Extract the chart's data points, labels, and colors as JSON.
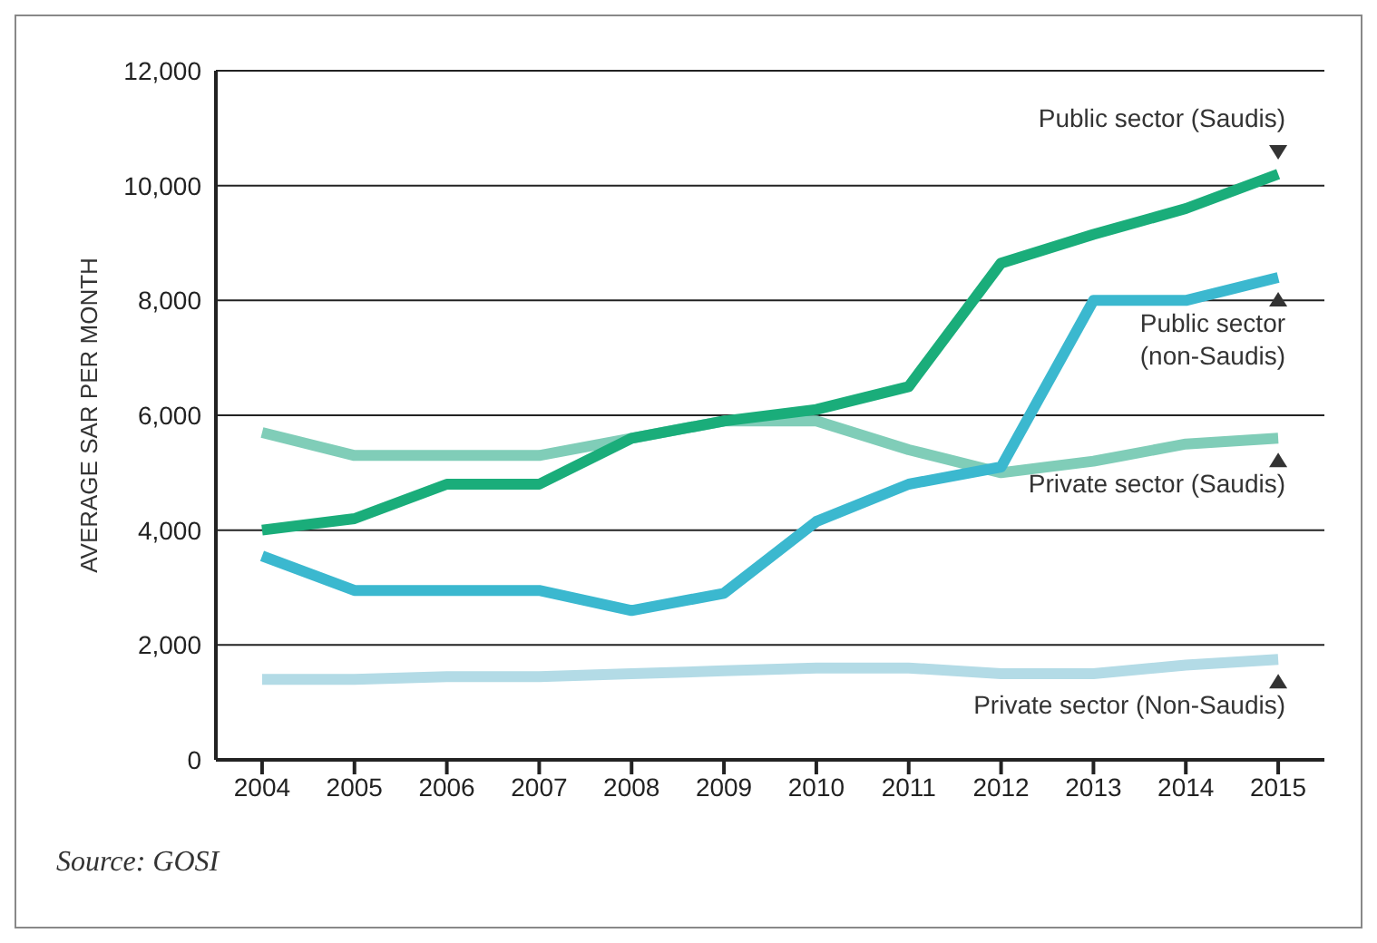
{
  "chart_data": {
    "type": "line",
    "ylabel": "AVERAGE SAR PER MONTH",
    "categories": [
      "2004",
      "2005",
      "2006",
      "2007",
      "2008",
      "2009",
      "2010",
      "2011",
      "2012",
      "2013",
      "2014",
      "2015"
    ],
    "series": [
      {
        "color": "#80cdb8",
        "values": [
          5700,
          5300,
          5300,
          5300,
          5600,
          5900,
          5900,
          5400,
          5000,
          5200,
          5500,
          5600
        ]
      },
      {
        "color": "#b3dbe6",
        "values": [
          1400,
          1400,
          1450,
          1450,
          1500,
          1550,
          1600,
          1600,
          1500,
          1500,
          1650,
          1750
        ]
      },
      {
        "color": "#3bb8cf",
        "values": [
          3550,
          2950,
          2950,
          2950,
          2600,
          2900,
          4150,
          4800,
          5100,
          8000,
          8000,
          8400
        ]
      },
      {
        "color": "#1aad7a",
        "values": [
          4000,
          4200,
          4800,
          4800,
          5600,
          5900,
          6100,
          6500,
          8650,
          9150,
          9600,
          10200
        ]
      }
    ],
    "ylim": [
      0,
      12000
    ],
    "yticks": [
      0,
      {
        "value": 2000,
        "label": "2,000"
      },
      {
        "value": 4000,
        "label": "4,000"
      },
      {
        "value": 6000,
        "label": "6,000"
      },
      {
        "value": 8000,
        "label": "8,000"
      },
      {
        "value": 10000,
        "label": "10,000"
      },
      {
        "value": 12000,
        "label": "12,000"
      }
    ],
    "grid": "y",
    "legend": false,
    "marker": "none",
    "line_style": "solid",
    "annotations": [
      {
        "text": "Public sector (Saudis)",
        "x": "2015",
        "y": 10200
      },
      {
        "text": "Public sector\n(non-Saudis)",
        "x": "2015",
        "y": 8400
      },
      {
        "text": "Private sector (Saudis)",
        "x": "2015",
        "y": 5600
      },
      {
        "text": "Private sector (Non-Saudis)",
        "x": "2015",
        "y": 1750
      },
      "Source: GOSI"
    ]
  }
}
